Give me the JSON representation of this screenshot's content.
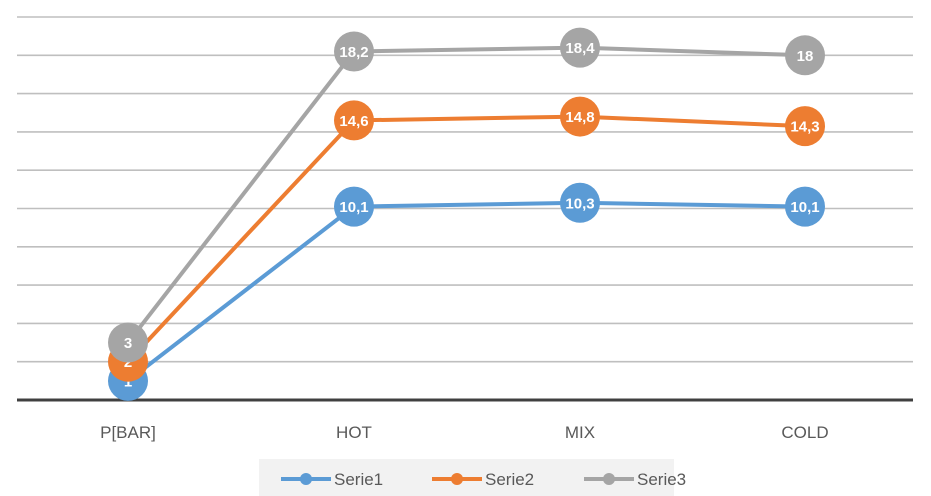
{
  "chart_data": {
    "type": "line",
    "categories": [
      "P[BAR]",
      "HOT",
      "MIX",
      "COLD"
    ],
    "series": [
      {
        "name": "Serie1",
        "values": [
          1,
          10.1,
          10.3,
          10.1
        ],
        "labels": [
          "1",
          "10,1",
          "10,3",
          "10,1"
        ],
        "color": "#5b9bd5"
      },
      {
        "name": "Serie2",
        "values": [
          2,
          14.6,
          14.8,
          14.3
        ],
        "labels": [
          "2",
          "14,6",
          "14,8",
          "14,3"
        ],
        "color": "#ed7d31"
      },
      {
        "name": "Serie3",
        "values": [
          3,
          18.2,
          18.4,
          18
        ],
        "labels": [
          "3",
          "18,2",
          "18,4",
          "18"
        ],
        "color": "#a5a5a5"
      }
    ],
    "ylim": [
      0,
      20
    ],
    "grid": true,
    "legend_position": "bottom",
    "gridline_color": "#bfbfbf",
    "axis_color": "#404040"
  }
}
